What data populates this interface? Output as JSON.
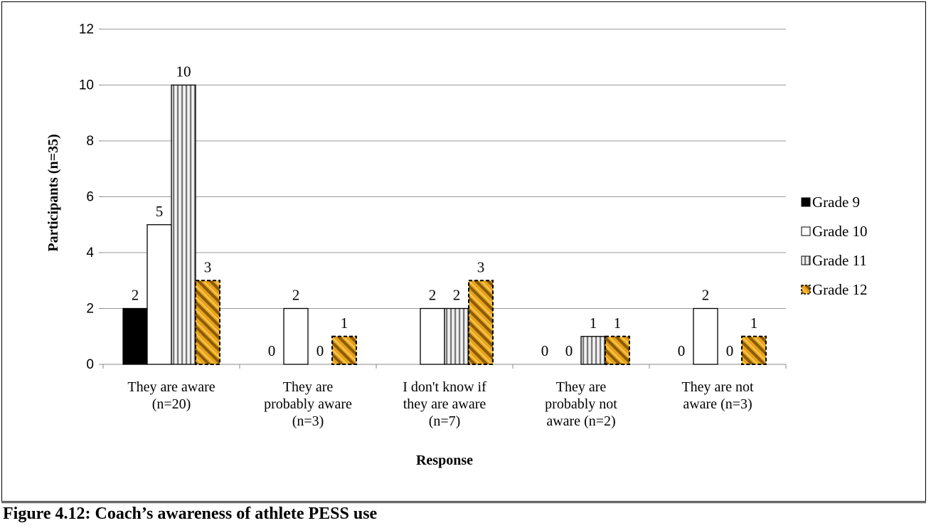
{
  "caption": "Figure 4.12: Coach’s awareness of athlete PESS use",
  "chart_data": {
    "type": "bar",
    "xlabel": "Response",
    "ylabel": "Participants (n=35)",
    "ylim": [
      0,
      12
    ],
    "yticks": [
      "0",
      "2",
      "4",
      "6",
      "8",
      "10",
      "12"
    ],
    "grid": true,
    "legend_position": "right",
    "categories": [
      [
        "They are aware",
        "(n=20)"
      ],
      [
        "They are",
        "probably aware",
        "(n=3)"
      ],
      [
        "I don't know if",
        "they are aware",
        "(n=7)"
      ],
      [
        "They are",
        "probably not",
        "aware (n=2)"
      ],
      [
        "They are not",
        "aware (n=3)"
      ]
    ],
    "series": [
      {
        "name": "Grade 9",
        "values": [
          2,
          0,
          0,
          0,
          0
        ],
        "labels": [
          "2",
          "0",
          "",
          "0",
          "0"
        ],
        "fill": "#000000",
        "pattern": "solid"
      },
      {
        "name": "Grade 10",
        "values": [
          5,
          2,
          2,
          0,
          2
        ],
        "labels": [
          "5",
          "2",
          "2",
          "0",
          "2"
        ],
        "fill": "#ffffff",
        "pattern": "solid"
      },
      {
        "name": "Grade 11",
        "values": [
          10,
          0,
          2,
          1,
          0
        ],
        "labels": [
          "10",
          "0",
          "2",
          "1",
          "0"
        ],
        "fill": "#bdbdbd",
        "pattern": "vertical-stripes"
      },
      {
        "name": "Grade 12",
        "values": [
          3,
          1,
          3,
          1,
          1
        ],
        "labels": [
          "3",
          "1",
          "3",
          "1",
          "1"
        ],
        "fill": "#e8a317",
        "pattern": "diagonal-stripes"
      }
    ]
  }
}
